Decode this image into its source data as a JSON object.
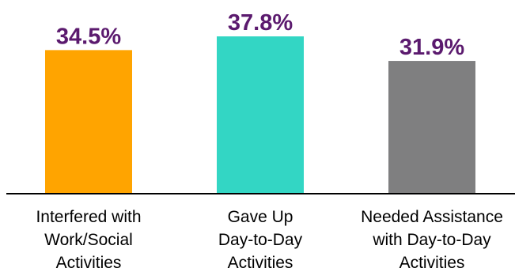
{
  "chart_data": {
    "type": "bar",
    "categories": [
      [
        "Interfered with",
        "Work/Social",
        "Activities"
      ],
      [
        "Gave Up",
        "Day-to-Day",
        "Activities"
      ],
      [
        "Needed Assistance",
        "with Day-to-Day",
        "Activities"
      ]
    ],
    "values": [
      34.5,
      37.8,
      31.9
    ],
    "value_labels": [
      "34.5%",
      "37.8%",
      "31.9%"
    ],
    "bar_colors": [
      "#FFA400",
      "#33D6C4",
      "#7F7F80"
    ],
    "label_color": "#5B1A6E",
    "ylim": [
      0,
      37.8
    ],
    "grid": false,
    "legend": "none"
  }
}
